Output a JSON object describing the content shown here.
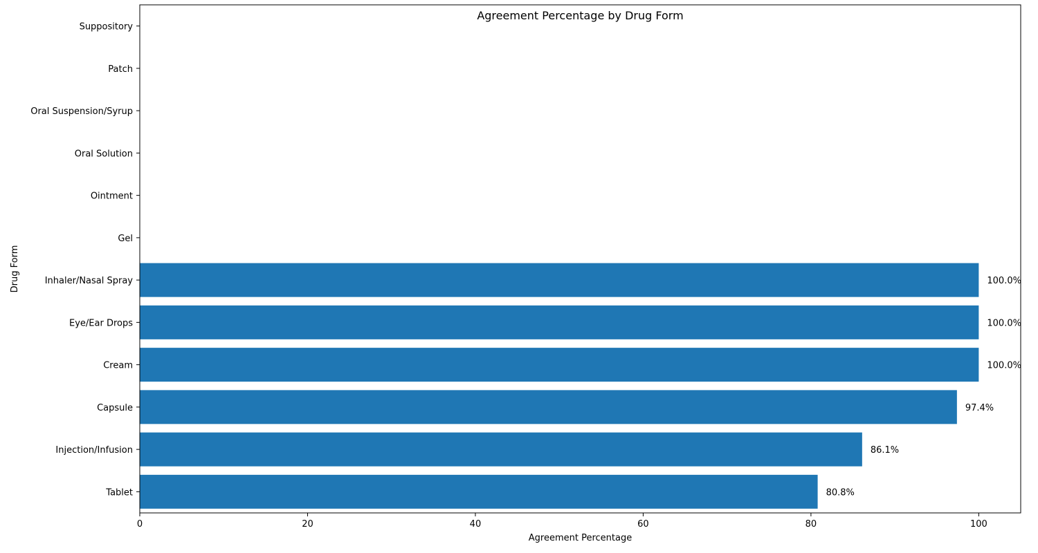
{
  "chart_data": {
    "type": "bar",
    "orientation": "horizontal",
    "title": "Agreement Percentage by Drug Form",
    "xlabel": "Agreement Percentage",
    "ylabel": "Drug Form",
    "categories": [
      "Tablet",
      "Injection/Infusion",
      "Capsule",
      "Cream",
      "Eye/Ear Drops",
      "Inhaler/Nasal Spray",
      "Gel",
      "Ointment",
      "Oral Solution",
      "Oral Suspension/Syrup",
      "Patch",
      "Suppository"
    ],
    "values": [
      80.8,
      86.1,
      97.4,
      100.0,
      100.0,
      100.0,
      0,
      0,
      0,
      0,
      0,
      0
    ],
    "value_labels": [
      "80.8%",
      "86.1%",
      "97.4%",
      "100.0%",
      "100.0%",
      "100.0%",
      "",
      "",
      "",
      "",
      "",
      ""
    ],
    "xlim": [
      0,
      105
    ],
    "xticks": [
      0,
      20,
      40,
      60,
      80,
      100
    ],
    "grid": false,
    "bar_color": "#1f77b4"
  }
}
